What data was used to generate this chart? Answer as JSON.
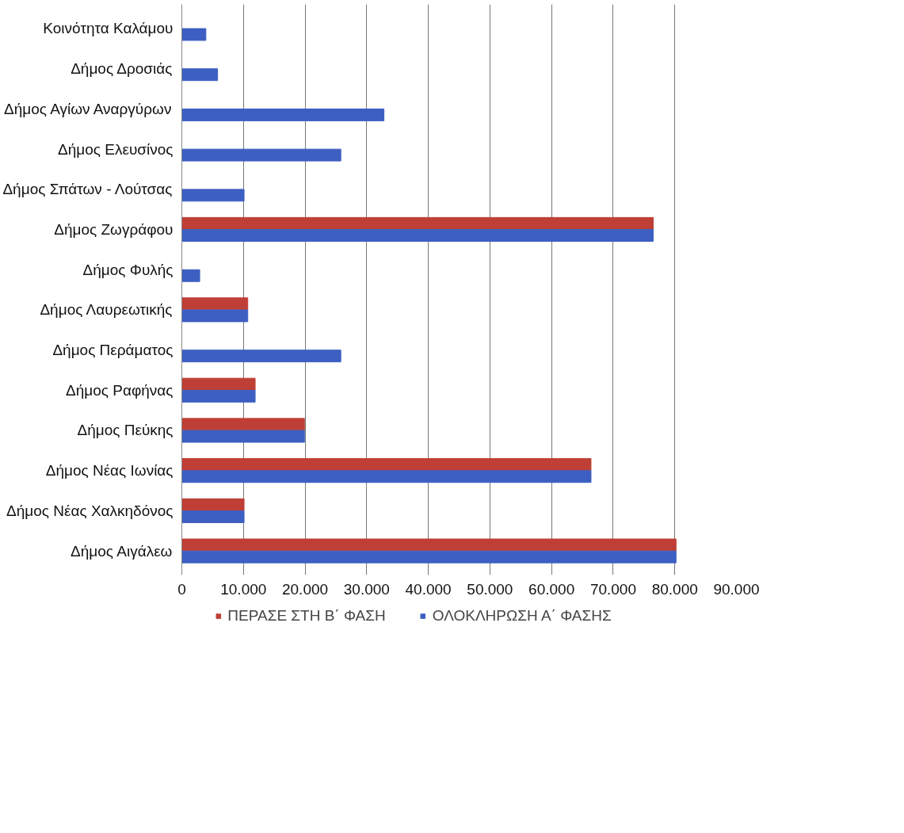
{
  "chart_data": {
    "type": "bar",
    "orientation": "horizontal",
    "categories": [
      "Κοινότητα Καλάμου",
      "Δήμος Δροσιάς",
      "Δήμος Αγίων Αναργύρων",
      "Δήμος Ελευσίνος",
      "Δήμος Σπάτων - Λούτσας",
      "Δήμος Ζωγράφου",
      "Δήμος Φυλής",
      "Δήμος Λαυρεωτικής",
      "Δήμος Περάματος",
      "Δήμος Ραφήνας",
      "Δήμος Πεύκης",
      "Δήμος Νέας Ιωνίας",
      "Δήμος Νέας Χαλκηδόνος",
      "Δήμος Αιγάλεω"
    ],
    "series": [
      {
        "name": "ΠΕΡΑΣΕ ΣΤΗ Β΄ ΦΑΣΗ",
        "color": "#bf3f36",
        "values": [
          null,
          null,
          null,
          null,
          null,
          76500,
          null,
          10700,
          null,
          11900,
          19900,
          66400,
          10100,
          80200
        ]
      },
      {
        "name": "ΟΛΟΚΛΗΡΩΣΗ Α΄ ΦΑΣΗΣ",
        "color": "#3d5fc2",
        "values": [
          3900,
          5800,
          32800,
          25800,
          10100,
          76500,
          2900,
          10700,
          25800,
          11900,
          19900,
          66400,
          10100,
          80200
        ]
      }
    ],
    "xlim": [
      0,
      90000
    ],
    "xticks": [
      0,
      {
        "value": 10000,
        "label": "10.000"
      },
      {
        "value": 20000,
        "label": "20.000"
      },
      {
        "value": 30000,
        "label": "30.000"
      },
      {
        "value": 40000,
        "label": "40.000"
      },
      {
        "value": 50000,
        "label": "50.000"
      },
      {
        "value": 60000,
        "label": "60.000"
      },
      {
        "value": 70000,
        "label": "70.000"
      },
      {
        "value": 80000,
        "label": "80.000"
      },
      {
        "value": 90000,
        "label": "90.000"
      }
    ],
    "grid": "x",
    "legend": "bottom"
  }
}
